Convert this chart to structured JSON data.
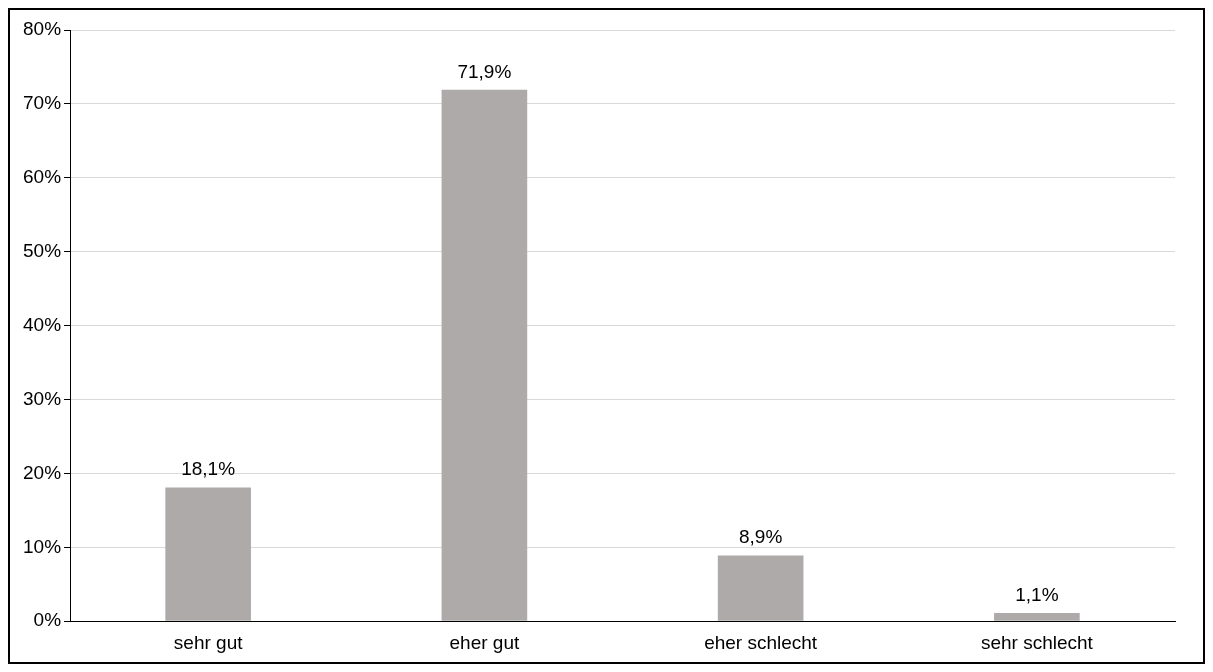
{
  "chart_data": {
    "type": "bar",
    "categories": [
      "sehr gut",
      "eher gut",
      "eher schlecht",
      "sehr schlecht"
    ],
    "values": [
      18.1,
      71.9,
      8.9,
      1.1
    ],
    "color": "#aeaaaa",
    "value_labels": [
      "18,1%",
      "71,9%",
      "8,9%",
      "1,1%"
    ],
    "ylim": [
      0,
      80
    ],
    "yticks": [
      {
        "value": 0,
        "label": "0%"
      },
      {
        "value": 10,
        "label": "10%"
      },
      {
        "value": 20,
        "label": "20%"
      },
      {
        "value": 30,
        "label": "30%"
      },
      {
        "value": 40,
        "label": "40%"
      },
      {
        "value": 50,
        "label": "50%"
      },
      {
        "value": 60,
        "label": "60%"
      },
      {
        "value": 70,
        "label": "70%"
      },
      {
        "value": 80,
        "label": "80%"
      }
    ],
    "grid": "y",
    "legend": false
  }
}
